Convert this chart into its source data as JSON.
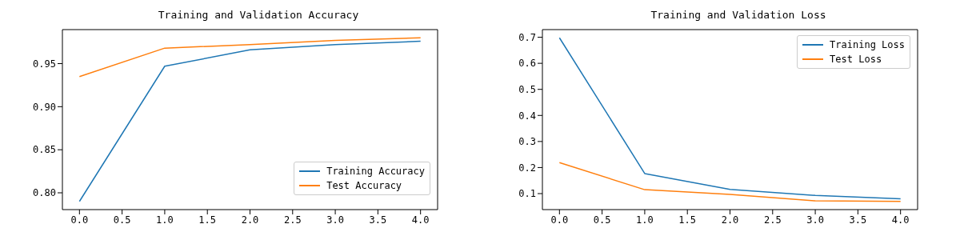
{
  "chart_data": [
    {
      "type": "line",
      "title": "Training and Validation Accuracy",
      "x": [
        0,
        1,
        2,
        3,
        4
      ],
      "series": [
        {
          "name": "Training Accuracy",
          "color": "#1f77b4",
          "values": [
            0.79,
            0.947,
            0.966,
            0.972,
            0.976
          ]
        },
        {
          "name": "Test Accuracy",
          "color": "#ff7f0e",
          "values": [
            0.935,
            0.968,
            0.972,
            0.977,
            0.98
          ]
        }
      ],
      "xlim": [
        -0.2,
        4.2
      ],
      "xticks": [
        {
          "value": 0,
          "label": "0.0"
        },
        {
          "value": 0.5,
          "label": "0.5"
        },
        {
          "value": 1,
          "label": "1.0"
        },
        {
          "value": 1.5,
          "label": "1.5"
        },
        {
          "value": 2,
          "label": "2.0"
        },
        {
          "value": 2.5,
          "label": "2.5"
        },
        {
          "value": 3,
          "label": "3.0"
        },
        {
          "value": 3.5,
          "label": "3.5"
        },
        {
          "value": 4,
          "label": "4.0"
        }
      ],
      "ylim": [
        0.7805,
        0.9895
      ],
      "yticks": [
        {
          "value": 0.8,
          "label": "0.80"
        },
        {
          "value": 0.85,
          "label": "0.85"
        },
        {
          "value": 0.9,
          "label": "0.90"
        },
        {
          "value": 0.95,
          "label": "0.95"
        }
      ],
      "grid": false,
      "legend": "bottom right",
      "marker": "none",
      "line_style": "solid"
    },
    {
      "type": "line",
      "title": "Training and Validation Loss",
      "x": [
        0,
        1,
        2,
        3,
        4
      ],
      "series": [
        {
          "name": "Training Loss",
          "color": "#1f77b4",
          "values": [
            0.698,
            0.177,
            0.116,
            0.093,
            0.08
          ]
        },
        {
          "name": "Test Loss",
          "color": "#ff7f0e",
          "values": [
            0.219,
            0.115,
            0.097,
            0.072,
            0.07
          ]
        }
      ],
      "xlim": [
        -0.2,
        4.2
      ],
      "xticks": [
        {
          "value": 0,
          "label": "0.0"
        },
        {
          "value": 0.5,
          "label": "0.5"
        },
        {
          "value": 1,
          "label": "1.0"
        },
        {
          "value": 1.5,
          "label": "1.5"
        },
        {
          "value": 2,
          "label": "2.0"
        },
        {
          "value": 2.5,
          "label": "2.5"
        },
        {
          "value": 3,
          "label": "3.0"
        },
        {
          "value": 3.5,
          "label": "3.5"
        },
        {
          "value": 4,
          "label": "4.0"
        }
      ],
      "ylim": [
        0.0386,
        0.7294
      ],
      "yticks": [
        0.1,
        0.2,
        0.3,
        0.4,
        0.5,
        0.6,
        0.7
      ],
      "grid": false,
      "legend": "top right",
      "marker": "none",
      "line_style": "solid"
    }
  ]
}
